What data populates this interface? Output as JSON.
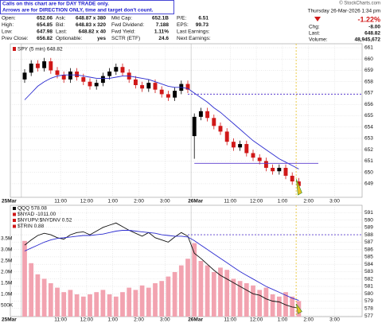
{
  "header": {
    "notes": [
      "Calls on this chart are for DAY TRADE only.",
      "Arrows are for DIRECTION ONLY, time and target don't count."
    ],
    "copyright": "© StockCharts.com",
    "quote": [
      [
        [
          "Open:",
          "652.06"
        ],
        [
          "Ask:",
          "648.87 x 380"
        ],
        [
          "Mkt Cap:",
          "652.1B"
        ],
        [
          "P/E:",
          "6.51"
        ]
      ],
      [
        [
          "High:",
          "654.85"
        ],
        [
          "Bid:",
          "648.83 x 320"
        ],
        [
          "Fwd Dividend:",
          "7.188"
        ],
        [
          "EPS:",
          "99.73"
        ]
      ],
      [
        [
          "Low:",
          "647.98"
        ],
        [
          "Last:",
          "648.82 x 40"
        ],
        [
          "Fwd Yield:",
          "1.11%"
        ],
        [
          "Last Earnings:"
        ]
      ],
      [
        [
          "Prev Close:",
          "656.82"
        ],
        [
          "Optionable:",
          "yes"
        ],
        [
          "SCTR (ETF)",
          "24.6"
        ],
        [
          "Next Earnings:"
        ]
      ]
    ],
    "datetime": "Thursday  26-Mar-2026  1:34 pm",
    "change_pct": "-1.22%",
    "stats": [
      [
        "Chg:",
        "-8.00"
      ],
      [
        "Last:",
        "648.82"
      ],
      [
        "Volume:",
        "48,945,672"
      ]
    ]
  },
  "chart_data": [
    {
      "type": "candlestick",
      "legend": "SPY (5 min) 648.82",
      "categories": [
        "25Mar",
        null,
        null,
        null,
        null,
        null,
        "11:00",
        null,
        null,
        null,
        "12:00",
        null,
        null,
        null,
        "1:00",
        null,
        null,
        null,
        "2:00",
        null,
        null,
        null,
        "3:00",
        null,
        null,
        null,
        "26Mar",
        null,
        null,
        null,
        null,
        null,
        "11:00",
        null,
        null,
        null,
        "12:00",
        null,
        null,
        null,
        "1:00",
        null,
        null,
        null,
        "2:00",
        null,
        null,
        null,
        "3:00",
        null,
        null,
        null
      ],
      "open": [
        658.2,
        658.8,
        659.6,
        659.2,
        659.8,
        659.0,
        658.6,
        658.2,
        658.9,
        658.4,
        658.0,
        657.6,
        657.9,
        658.5,
        658.9,
        659.3,
        658.8,
        658.2,
        657.7,
        657.4,
        657.9,
        657.3,
        656.9,
        656.6,
        657.2,
        657.8,
        653.2,
        654.9,
        655.4,
        654.8,
        654.1,
        653.6,
        652.7,
        652.2,
        652.5,
        651.7,
        651.3,
        651.0,
        650.4,
        650.1,
        650.4,
        649.7,
        649.2,
        null,
        null,
        null,
        null,
        null,
        null,
        null,
        null,
        null
      ],
      "high": [
        659.1,
        659.9,
        659.9,
        660.1,
        660.1,
        659.3,
        658.9,
        659.2,
        659.2,
        658.7,
        658.3,
        658.2,
        658.8,
        659.2,
        659.6,
        659.6,
        659.1,
        658.5,
        658.0,
        658.2,
        658.2,
        657.6,
        657.2,
        657.5,
        658.1,
        658.1,
        655.2,
        655.7,
        655.7,
        655.1,
        654.4,
        653.9,
        653.0,
        652.8,
        652.8,
        652.0,
        651.6,
        651.3,
        650.7,
        650.7,
        650.7,
        650.0,
        649.5,
        null,
        null,
        null,
        null,
        null,
        null,
        null,
        null,
        null
      ],
      "low": [
        657.9,
        658.5,
        658.9,
        658.9,
        658.7,
        658.3,
        657.9,
        657.9,
        658.1,
        657.7,
        657.3,
        657.3,
        657.6,
        658.2,
        658.6,
        658.5,
        657.9,
        657.4,
        657.1,
        657.1,
        657.0,
        656.6,
        656.3,
        656.3,
        656.9,
        657.0,
        651.2,
        654.6,
        654.5,
        653.8,
        653.3,
        652.4,
        651.9,
        651.9,
        651.4,
        651.0,
        650.7,
        650.1,
        649.8,
        649.8,
        649.4,
        648.9,
        648.5,
        null,
        null,
        null,
        null,
        null,
        null,
        null,
        null,
        null
      ],
      "close": [
        658.8,
        659.6,
        659.2,
        659.8,
        659.0,
        658.6,
        658.2,
        658.9,
        658.4,
        658.0,
        657.6,
        657.9,
        658.5,
        658.9,
        659.3,
        658.8,
        658.2,
        657.7,
        657.4,
        657.9,
        657.3,
        656.9,
        656.6,
        657.2,
        657.8,
        657.3,
        654.9,
        655.4,
        654.8,
        654.1,
        653.6,
        652.7,
        652.2,
        652.5,
        651.7,
        651.3,
        651.0,
        650.4,
        650.1,
        650.4,
        649.7,
        649.2,
        648.8,
        null,
        null,
        null,
        null,
        null,
        null,
        null,
        null,
        null
      ],
      "up_color": "#000000",
      "down_color": "#d01818",
      "series": [
        {
          "color": "#2b2bd0",
          "values": [
            656.4,
            657.0,
            657.6,
            658.0,
            658.3,
            658.5,
            658.6,
            658.6,
            658.6,
            658.5,
            658.4,
            658.3,
            658.3,
            658.3,
            658.4,
            658.5,
            658.5,
            658.4,
            658.3,
            658.2,
            658.0,
            657.8,
            657.6,
            657.5,
            657.5,
            657.4,
            657.0,
            656.6,
            656.2,
            655.7,
            655.3,
            654.8,
            654.3,
            653.8,
            653.3,
            652.8,
            652.4,
            652.0,
            651.6,
            651.2,
            650.9,
            650.6,
            650.3,
            null,
            null,
            null,
            null,
            null,
            null,
            null,
            null,
            null
          ]
        }
      ],
      "levels": [
        {
          "value": 656.9,
          "style": "dashed",
          "color": "#5a3ccf"
        },
        {
          "value": 650.8,
          "style": "solid",
          "color": "#5a3ccf"
        }
      ],
      "ylim": [
        647.8,
        661.35
      ],
      "yticks": [
        649,
        650,
        651,
        652,
        653,
        654,
        655,
        656,
        657,
        658,
        659,
        660,
        661
      ],
      "grid": true
    },
    {
      "type": "bar",
      "legend": [
        "QQQ 578.08",
        "$NYAD -1011.00",
        "$NYUPV:$NYDNV 0.52",
        "$TRIN 0.88"
      ],
      "categories": [
        "25Mar",
        null,
        null,
        null,
        null,
        null,
        "11:00",
        null,
        null,
        null,
        "12:00",
        null,
        null,
        null,
        "1:00",
        null,
        null,
        null,
        "2:00",
        null,
        null,
        null,
        "3:00",
        null,
        null,
        null,
        "26Mar",
        null,
        null,
        null,
        null,
        null,
        "11:00",
        null,
        null,
        null,
        "12:00",
        null,
        null,
        null,
        "1:00",
        null,
        null,
        null,
        "2:00",
        null,
        null,
        null,
        "3:00",
        null,
        null,
        null
      ],
      "values": [
        3400000,
        2400000,
        1900000,
        1700000,
        1500000,
        1300000,
        1100000,
        1200000,
        1000000,
        900000,
        1000000,
        1100000,
        1200000,
        1000000,
        900000,
        1100000,
        1300000,
        1200000,
        1400000,
        1300000,
        1500000,
        1600000,
        1800000,
        2000000,
        2300000,
        2600000,
        3300000,
        2500000,
        2300000,
        2000000,
        2200000,
        2100000,
        1700000,
        1600000,
        1500000,
        1400000,
        1200000,
        1300000,
        1000000,
        900000,
        1100000,
        900000,
        700000,
        null,
        null,
        null,
        null,
        null,
        null,
        null,
        null,
        null
      ],
      "color": "#f2a3b0",
      "series": [
        {
          "color": "#111111",
          "axis": "y2",
          "values": [
            586.6,
            587.3,
            587.9,
            588.2,
            588.0,
            587.6,
            587.4,
            588.0,
            588.3,
            588.4,
            588.0,
            588.5,
            589.0,
            589.3,
            589.6,
            589.1,
            588.6,
            588.2,
            587.8,
            588.3,
            587.6,
            587.3,
            587.0,
            587.7,
            588.3,
            587.8,
            585.5,
            584.8,
            584.0,
            583.2,
            582.5,
            582.0,
            581.5,
            581.0,
            580.5,
            580.0,
            579.8,
            579.3,
            579.0,
            578.9,
            578.5,
            578.2,
            578.1,
            null,
            null,
            null,
            null,
            null,
            null,
            null,
            null,
            null
          ]
        },
        {
          "color": "#2b2bd0",
          "axis": "y2",
          "values": [
            585.8,
            586.2,
            586.6,
            587.0,
            587.3,
            587.5,
            587.6,
            587.7,
            587.8,
            587.9,
            587.9,
            588.0,
            588.1,
            588.3,
            588.5,
            588.6,
            588.6,
            588.5,
            588.4,
            588.3,
            588.2,
            588.0,
            587.9,
            587.8,
            587.8,
            587.7,
            587.2,
            586.6,
            586.0,
            585.4,
            584.8,
            584.2,
            583.6,
            583.0,
            582.5,
            582.0,
            581.5,
            581.0,
            580.6,
            580.2,
            579.8,
            579.4,
            579.1,
            null,
            null,
            null,
            null,
            null,
            null,
            null,
            null,
            null
          ]
        }
      ],
      "levels": [
        {
          "value": 588.0,
          "style": "dashed",
          "color": "#5a3ccf",
          "axis": "y2"
        }
      ],
      "ylim": [
        0,
        5000000
      ],
      "yticks": [
        {
          "value": 500000,
          "label": "500K"
        },
        {
          "value": 1000000,
          "label": "1.0M"
        },
        {
          "value": 1500000,
          "label": "1.5M"
        },
        {
          "value": 2000000,
          "label": "2.0M"
        },
        {
          "value": 2500000,
          "label": "2.5M"
        },
        {
          "value": 3000000,
          "label": "3.0M"
        },
        {
          "value": 3500000,
          "label": "3.5M"
        }
      ],
      "y2lim": [
        576.9,
        592
      ],
      "y2ticks": [
        577,
        578,
        579,
        580,
        581,
        582,
        583,
        584,
        585,
        586,
        587,
        588,
        589,
        590,
        591
      ],
      "grid": true
    }
  ]
}
